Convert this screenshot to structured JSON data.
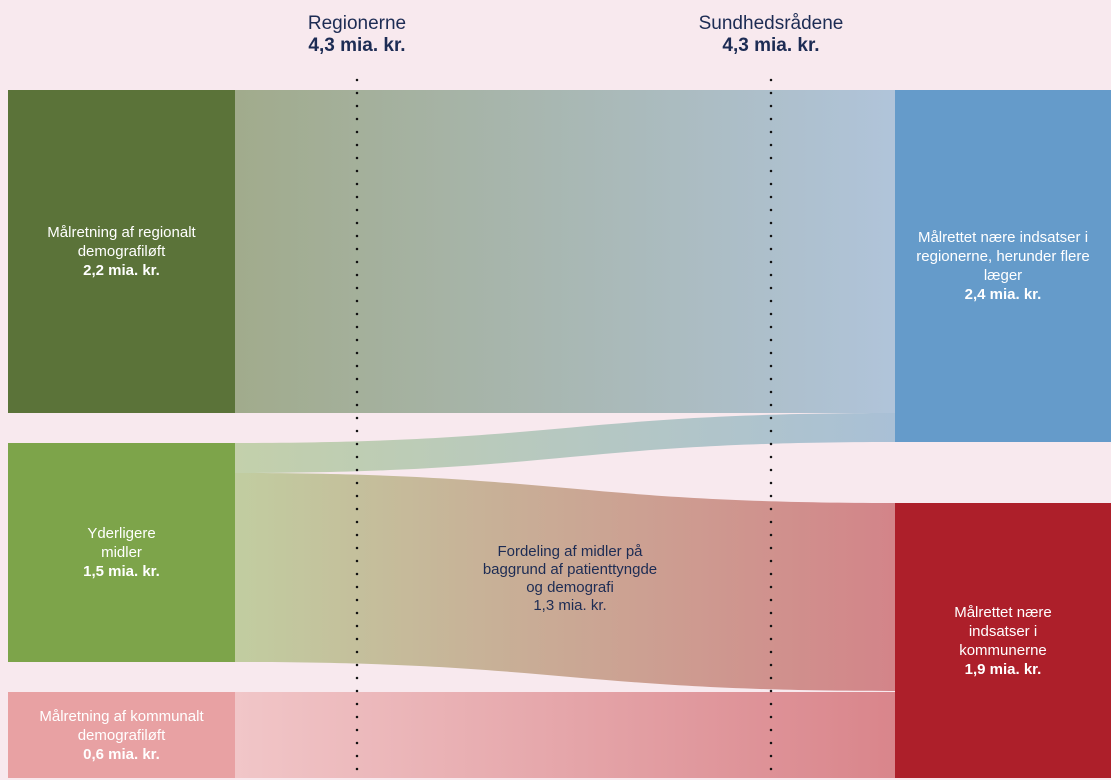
{
  "columns": [
    {
      "name": "Regionerne",
      "value": "4,3 mia. kr."
    },
    {
      "name": "Sundhedsrådene",
      "value": "4,3 mia. kr."
    }
  ],
  "sources": [
    {
      "label": "Målretning af regionalt demografiløft",
      "value": "2,2 mia. kr.",
      "color": "#5b7339"
    },
    {
      "label": "Yderligere midler",
      "value": "1,5 mia. kr.",
      "color": "#7da44a"
    },
    {
      "label": "Målretning af kommunalt demografiløft",
      "value": "0,6 mia. kr.",
      "color": "#e8a1a3"
    }
  ],
  "targets": [
    {
      "label": "Målrettet nære indsatser i regionerne, herunder flere læger",
      "value": "2,4 mia. kr.",
      "color": "#659bca"
    },
    {
      "label": "Målrettet nære indsatser i kommunerne",
      "value": "1,9 mia. kr.",
      "color": "#ad1f2a"
    }
  ],
  "flow_label": {
    "text": "Fordeling af midler på baggrund af patienttyngde og demografi",
    "value": "1,3 mia. kr."
  },
  "background_color": "#f8e9ee",
  "chart_data": {
    "type": "sankey",
    "columns": [
      "Regionerne",
      "Sundhedsrådene"
    ],
    "nodes": [
      {
        "id": "regional_demografi",
        "label": "Målretning af regionalt demografiløft",
        "value": 2.2
      },
      {
        "id": "yderligere_midler",
        "label": "Yderligere midler",
        "value": 1.5
      },
      {
        "id": "kommunal_demografi",
        "label": "Målretning af kommunalt demografiløft",
        "value": 0.6
      },
      {
        "id": "naere_regioner",
        "label": "Målrettet nære indsatser i regionerne, herunder flere læger",
        "value": 2.4
      },
      {
        "id": "naere_kommuner",
        "label": "Målrettet nære indsatser i kommunerne",
        "value": 1.9
      }
    ],
    "links": [
      {
        "source": "regional_demografi",
        "target": "naere_regioner",
        "value": 2.2
      },
      {
        "source": "yderligere_midler",
        "target": "naere_regioner",
        "value": 0.2
      },
      {
        "source": "yderligere_midler",
        "target": "naere_kommuner",
        "value": 1.3
      },
      {
        "source": "kommunal_demografi",
        "target": "naere_kommuner",
        "value": 0.6
      }
    ],
    "unit": "mia. kr."
  }
}
